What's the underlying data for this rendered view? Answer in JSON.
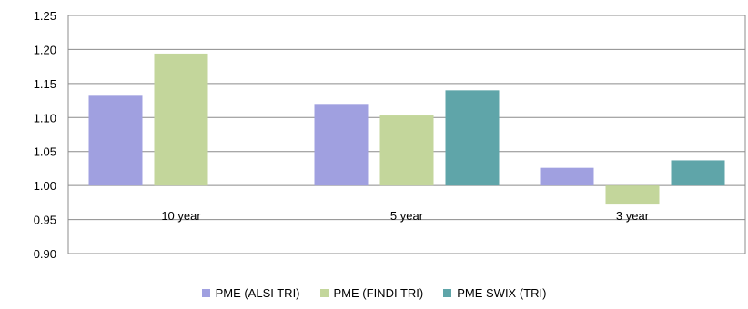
{
  "chart_data": {
    "type": "bar",
    "title": "",
    "xlabel": "",
    "ylabel": "",
    "categories": [
      "10 year",
      "5 year",
      "3 year"
    ],
    "series": [
      {
        "name": "PME (ALSI TRI)",
        "color": "#a0a0e0",
        "values": [
          1.132,
          1.12,
          1.026
        ]
      },
      {
        "name": "PME (FINDI TRI)",
        "color": "#c3d69b",
        "values": [
          1.194,
          1.103,
          0.972
        ]
      },
      {
        "name": "PME SWIX (TRI)",
        "color": "#5fa5a9",
        "values": [
          null,
          1.14,
          1.037
        ]
      }
    ],
    "ylim": [
      0.9,
      1.25
    ],
    "yticks": [
      "0.90",
      "0.95",
      "1.00",
      "1.05",
      "1.10",
      "1.15",
      "1.20",
      "1.25"
    ],
    "baseline": 1.0,
    "grid": true,
    "legend_position": "bottom"
  }
}
